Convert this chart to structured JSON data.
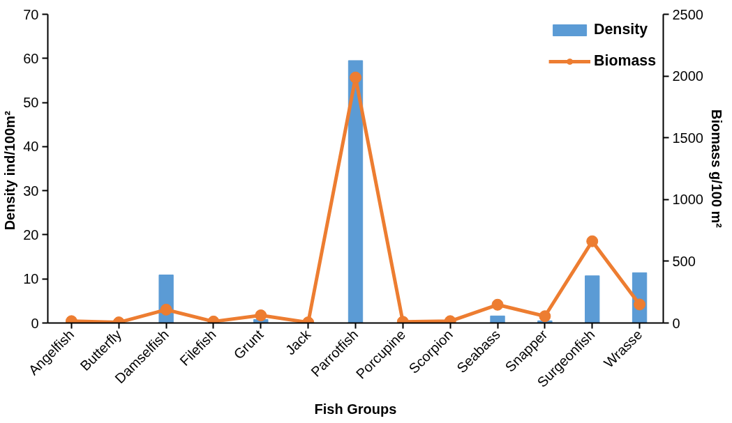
{
  "chart_data": {
    "type": "bar",
    "xlabel": "Fish Groups",
    "ylabel": "Density  ind/100m²",
    "y2label": "Biomass g/100 m²",
    "categories": [
      "Angelfish",
      "Butterfly",
      "Damselfish",
      "Filefish",
      "Grunt",
      "Jack",
      "Parrotfish",
      "Porcupine",
      "Scorpion",
      "Seabass",
      "Snapper",
      "Surgeonfish",
      "Wrasse"
    ],
    "series": [
      {
        "name": "Density",
        "color": "#5b9bd5",
        "values": [
          0,
          0,
          10.9,
          0,
          0.8,
          0,
          59.5,
          0,
          0,
          1.6,
          0.5,
          10.7,
          11.4
        ]
      },
      {
        "name": "Biomass",
        "type": "line",
        "axis": "y2",
        "color": "#ed7d31",
        "marker": "circle",
        "values": [
          15,
          5,
          108,
          12,
          62,
          5,
          1988,
          10,
          15,
          148,
          55,
          662,
          150
        ]
      }
    ],
    "ylim": [
      0,
      70
    ],
    "yticks": [
      0,
      10,
      20,
      30,
      40,
      50,
      60,
      70
    ],
    "y2lim": [
      0,
      2500
    ],
    "y2ticks": [
      0,
      500,
      1000,
      1500,
      2000,
      2500
    ],
    "grid": false,
    "legend": "top right"
  }
}
